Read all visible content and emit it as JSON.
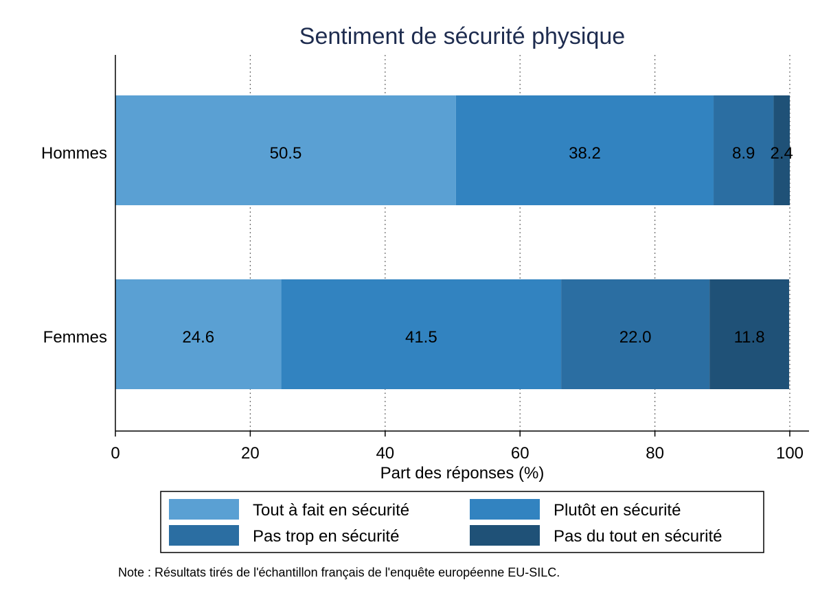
{
  "chart_data": {
    "type": "bar",
    "orientation": "horizontal",
    "stacked": true,
    "title": "Sentiment de sécurité physique",
    "xlabel": "Part des réponses (%)",
    "ylabel": "",
    "xlim": [
      0,
      100
    ],
    "xticks": [
      "0",
      "20",
      "40",
      "60",
      "80",
      "100"
    ],
    "grid": "vertical dotted",
    "categories": [
      "Hommes",
      "Femmes"
    ],
    "series": [
      {
        "name": "Tout à fait en sécurité",
        "color": "#5aa0d3",
        "values": [
          50.5,
          24.6
        ],
        "labels": [
          "50.5",
          "24.6"
        ]
      },
      {
        "name": "Plutôt en sécurité",
        "color": "#3283c0",
        "values": [
          38.2,
          41.5
        ],
        "labels": [
          "38.2",
          "41.5"
        ]
      },
      {
        "name": "Pas trop en sécurité",
        "color": "#2b6ea2",
        "values": [
          8.9,
          22.0
        ],
        "labels": [
          "8.9",
          "22.0"
        ]
      },
      {
        "name": "Pas du tout en sécurité",
        "color": "#1f5177",
        "values": [
          2.4,
          11.8
        ],
        "labels": [
          "2.4",
          "11.8"
        ]
      }
    ],
    "legend_position": "bottom"
  },
  "note": "Note : Résultats tirés de l'échantillon français de l'enquête européenne EU-SILC."
}
